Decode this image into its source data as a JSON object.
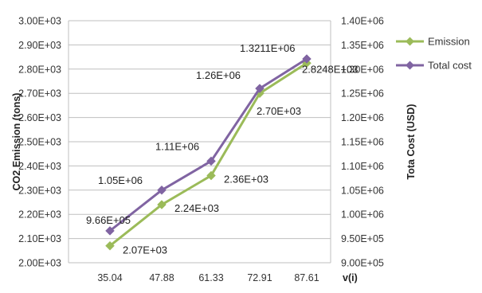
{
  "chart_data": {
    "type": "line",
    "x_axis": {
      "label": "v(i)",
      "categories": [
        "35.04",
        "47.88",
        "61.33",
        "72.91",
        "87.61"
      ]
    },
    "y_left": {
      "label": "CO2 Emission (tons)",
      "min": 2000,
      "max": 3000,
      "step": 100,
      "tick_labels": [
        "2.00E+03",
        "2.10E+03",
        "2.20E+03",
        "2.30E+03",
        "2.40E+03",
        "2.50E+03",
        "2.60E+03",
        "2.70E+03",
        "2.80E+03",
        "2.90E+03",
        "3.00E+03"
      ]
    },
    "y_right": {
      "label": "Tota Cost  (USD)",
      "min": 900000,
      "max": 1400000,
      "step": 50000,
      "tick_labels": [
        "9.00E+05",
        "9.50E+05",
        "1.00E+06",
        "1.05E+06",
        "1.10E+06",
        "1.15E+06",
        "1.20E+06",
        "1.25E+06",
        "1.30E+06",
        "1.35E+06",
        "1.40E+06"
      ]
    },
    "grid": "horizontal",
    "legend_position": "right",
    "series": [
      {
        "name": "Emission",
        "axis": "left",
        "color": "#9BBB59",
        "marker": "diamond",
        "values": [
          2070,
          2240,
          2360,
          2700,
          2824.8
        ],
        "data_labels": [
          "2.07E+03",
          "2.24E+03",
          "2.36E+03",
          "2.70E+03",
          "2.8248E+03"
        ]
      },
      {
        "name": "Total cost",
        "axis": "right",
        "color": "#8064A2",
        "marker": "diamond",
        "values": [
          966000,
          1050000,
          1110000,
          1260000,
          1321100
        ],
        "data_labels": [
          "9.66E+05",
          "1.05E+06",
          "1.11E+06",
          "1.26E+06",
          "1.3211E+06"
        ]
      }
    ]
  }
}
